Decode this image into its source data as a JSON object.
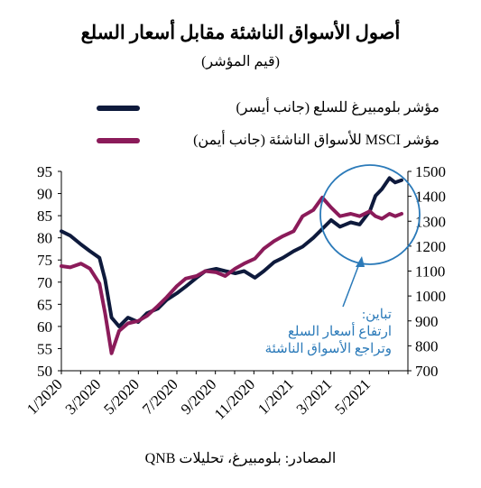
{
  "title": "أصول الأسواق الناشئة مقابل أسعار السلع",
  "subtitle": "(قيم المؤشر)",
  "source": "المصادر: بلومبيرغ، تحليلات QNB",
  "annotation": [
    "تباين:",
    "ارتفاع أسعار السلع",
    "وتراجع الأسواق الناشئة"
  ],
  "colors": {
    "commodities": "#0e1a3c",
    "msci": "#8b1b5a",
    "annotation": "#2b7ab9",
    "axis": "#000000"
  },
  "chart_data": {
    "type": "line",
    "x_tick_labels": [
      "1/2020",
      "3/2020",
      "5/2020",
      "7/2020",
      "9/2020",
      "11/2020",
      "1/2021",
      "3/2021",
      "5/2021"
    ],
    "y_left": {
      "label": "",
      "lim": [
        50,
        95
      ],
      "ticks": [
        50,
        55,
        60,
        65,
        70,
        75,
        80,
        85,
        90,
        95
      ]
    },
    "y_right": {
      "label": "",
      "lim": [
        700,
        1500
      ],
      "ticks": [
        700,
        800,
        900,
        1000,
        1100,
        1200,
        1300,
        1400,
        1500
      ]
    },
    "series": [
      {
        "name": "مؤشر بلومبيرغ للسلع (جانب أيسر)",
        "axis": "left",
        "color": "#0e1a3c",
        "x": [
          "2020-01-01",
          "2020-01-15",
          "2020-02-01",
          "2020-02-15",
          "2020-03-01",
          "2020-03-10",
          "2020-03-20",
          "2020-04-01",
          "2020-04-15",
          "2020-05-01",
          "2020-05-15",
          "2020-06-01",
          "2020-06-15",
          "2020-07-01",
          "2020-07-15",
          "2020-08-01",
          "2020-08-15",
          "2020-09-01",
          "2020-09-15",
          "2020-10-01",
          "2020-10-15",
          "2020-11-01",
          "2020-11-15",
          "2020-12-01",
          "2020-12-15",
          "2021-01-01",
          "2021-01-15",
          "2021-02-01",
          "2021-02-15",
          "2021-03-01",
          "2021-03-15",
          "2021-04-01",
          "2021-04-15",
          "2021-05-01",
          "2021-05-10",
          "2021-05-20",
          "2021-06-01",
          "2021-06-10",
          "2021-06-20"
        ],
        "values": [
          81.5,
          80.5,
          78.5,
          77,
          75.5,
          70.5,
          62,
          60,
          62,
          61,
          63,
          64,
          66,
          67.5,
          69,
          71,
          72.5,
          73,
          72.5,
          72,
          72.5,
          71,
          72.5,
          74.5,
          75.5,
          77,
          78,
          80,
          82,
          84,
          82.5,
          83.5,
          83,
          86,
          89.5,
          91,
          93.5,
          92.5,
          93
        ]
      },
      {
        "name": "مؤشر MSCI للأسواق الناشئة (جانب أيمن)",
        "axis": "right",
        "color": "#8b1b5a",
        "x": [
          "2020-01-01",
          "2020-01-15",
          "2020-02-01",
          "2020-02-15",
          "2020-03-01",
          "2020-03-10",
          "2020-03-20",
          "2020-04-01",
          "2020-04-15",
          "2020-05-01",
          "2020-05-15",
          "2020-06-01",
          "2020-06-15",
          "2020-07-01",
          "2020-07-15",
          "2020-08-01",
          "2020-08-15",
          "2020-09-01",
          "2020-09-15",
          "2020-10-01",
          "2020-10-15",
          "2020-11-01",
          "2020-11-15",
          "2020-12-01",
          "2020-12-15",
          "2021-01-01",
          "2021-01-15",
          "2021-02-01",
          "2021-02-15",
          "2021-03-01",
          "2021-03-15",
          "2021-04-01",
          "2021-04-15",
          "2021-05-01",
          "2021-05-10",
          "2021-05-20",
          "2021-06-01",
          "2021-06-10",
          "2021-06-20"
        ],
        "values": [
          1120,
          1115,
          1130,
          1110,
          1050,
          930,
          770,
          860,
          890,
          900,
          920,
          960,
          995,
          1040,
          1070,
          1080,
          1100,
          1095,
          1080,
          1110,
          1130,
          1150,
          1190,
          1220,
          1240,
          1260,
          1320,
          1345,
          1395,
          1355,
          1320,
          1330,
          1320,
          1340,
          1320,
          1310,
          1330,
          1320,
          1330
        ]
      }
    ]
  }
}
